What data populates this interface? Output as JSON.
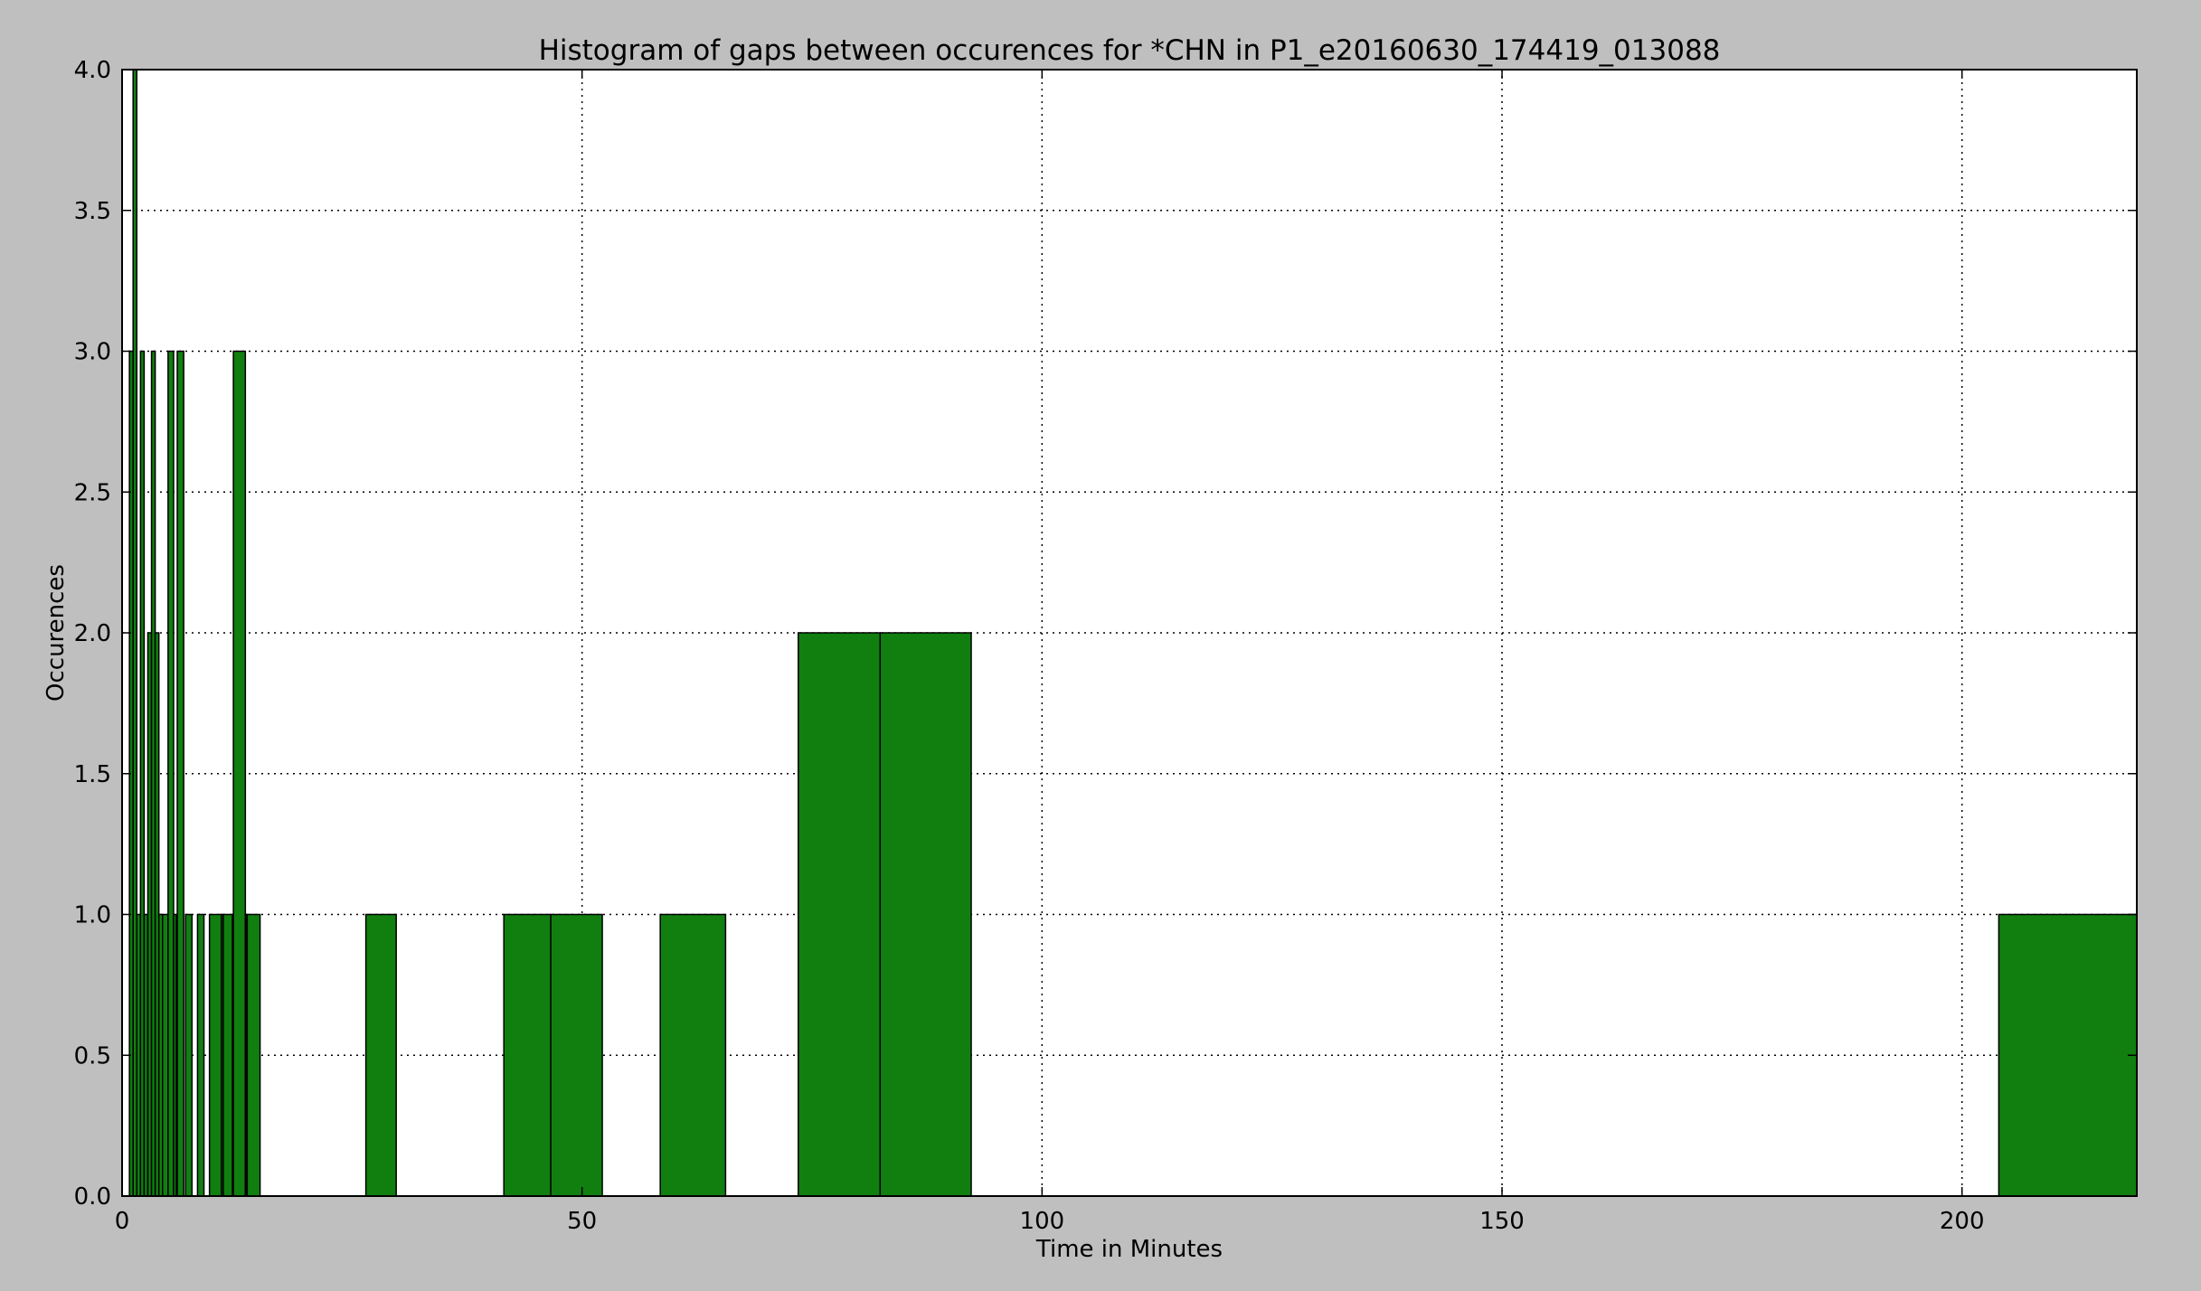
{
  "chart_data": {
    "type": "bar",
    "title": "Histogram of gaps between occurences for *CHN in P1_e20160630_174419_013088",
    "xlabel": "Time in Minutes",
    "ylabel": "Occurences",
    "xlim": [
      0,
      219
    ],
    "ylim": [
      0,
      4
    ],
    "xticks": [
      0,
      50,
      100,
      150,
      200
    ],
    "yticks": [
      0.0,
      0.5,
      1.0,
      1.5,
      2.0,
      2.5,
      3.0,
      3.5,
      4.0
    ],
    "xtick_labels": [
      "0",
      "50",
      "100",
      "150",
      "200"
    ],
    "ytick_labels": [
      "0.0",
      "0.5",
      "1.0",
      "1.5",
      "2.0",
      "2.5",
      "3.0",
      "3.5",
      "4.0"
    ],
    "grid": true,
    "bar_color": "#107f10",
    "bins": [
      {
        "x0": 0.8,
        "x1": 1.2,
        "count": 3
      },
      {
        "x0": 1.2,
        "x1": 1.6,
        "count": 4
      },
      {
        "x0": 1.6,
        "x1": 2.0,
        "count": 1
      },
      {
        "x0": 2.0,
        "x1": 2.4,
        "count": 3
      },
      {
        "x0": 2.4,
        "x1": 2.8,
        "count": 1
      },
      {
        "x0": 2.8,
        "x1": 3.2,
        "count": 2
      },
      {
        "x0": 3.2,
        "x1": 3.6,
        "count": 3
      },
      {
        "x0": 3.6,
        "x1": 4.0,
        "count": 2
      },
      {
        "x0": 4.0,
        "x1": 4.4,
        "count": 1
      },
      {
        "x0": 4.4,
        "x1": 5.0,
        "count": 1
      },
      {
        "x0": 5.0,
        "x1": 5.6,
        "count": 3
      },
      {
        "x0": 5.6,
        "x1": 5.9,
        "count": 1
      },
      {
        "x0": 6.0,
        "x1": 6.7,
        "count": 3
      },
      {
        "x0": 6.9,
        "x1": 7.6,
        "count": 1
      },
      {
        "x0": 8.2,
        "x1": 8.9,
        "count": 1
      },
      {
        "x0": 9.5,
        "x1": 10.8,
        "count": 1
      },
      {
        "x0": 10.8,
        "x1": 11.0,
        "count": 1
      },
      {
        "x0": 11.0,
        "x1": 12.0,
        "count": 1
      },
      {
        "x0": 12.0,
        "x1": 12.1,
        "count": 1
      },
      {
        "x0": 12.1,
        "x1": 13.4,
        "count": 3
      },
      {
        "x0": 13.4,
        "x1": 13.5,
        "count": 1
      },
      {
        "x0": 13.5,
        "x1": 13.6,
        "count": 1
      },
      {
        "x0": 13.6,
        "x1": 15.0,
        "count": 1
      },
      {
        "x0": 26.5,
        "x1": 29.8,
        "count": 1
      },
      {
        "x0": 41.5,
        "x1": 46.6,
        "count": 1
      },
      {
        "x0": 46.6,
        "x1": 52.2,
        "count": 1
      },
      {
        "x0": 58.5,
        "x1": 65.6,
        "count": 1
      },
      {
        "x0": 73.5,
        "x1": 82.4,
        "count": 2
      },
      {
        "x0": 82.4,
        "x1": 92.3,
        "count": 2
      },
      {
        "x0": 204.0,
        "x1": 219.0,
        "count": 1
      }
    ]
  }
}
